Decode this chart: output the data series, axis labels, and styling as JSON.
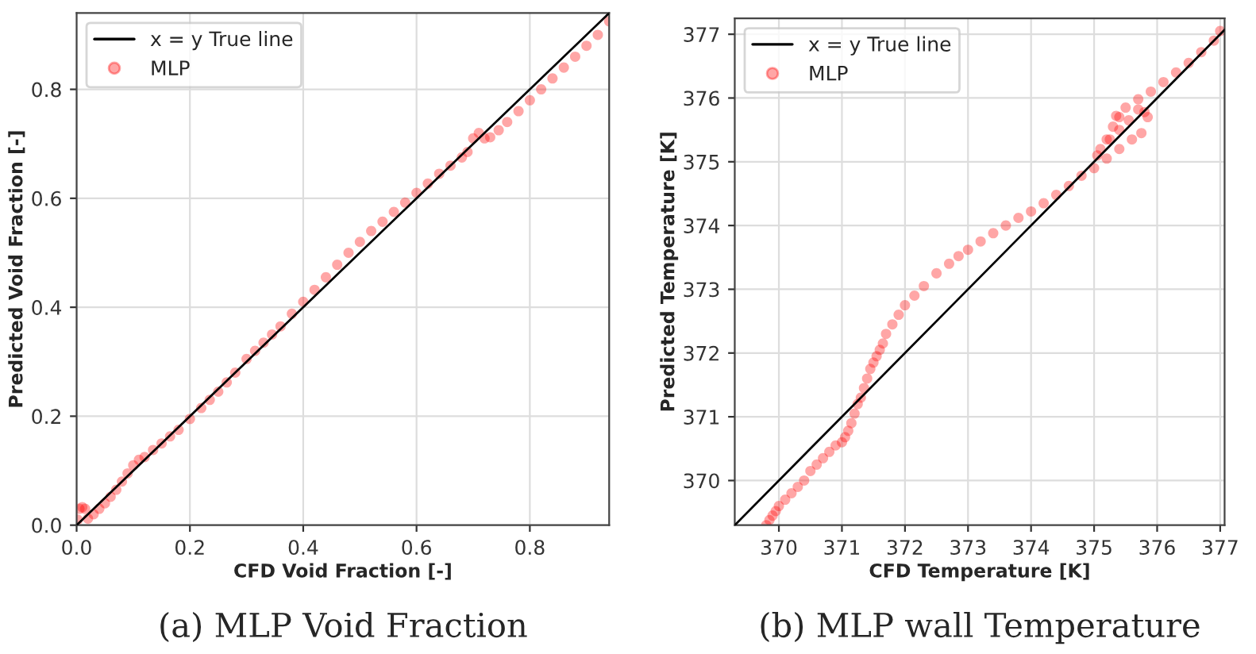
{
  "chart_data": [
    {
      "type": "scatter",
      "title": "(a) MLP Void Fraction",
      "xlabel": "CFD Void Fraction [-]",
      "ylabel": "Predicted Void Fraction [-]",
      "xlim": [
        0,
        0.94
      ],
      "ylim": [
        0,
        0.94
      ],
      "xticks": [
        {
          "value": 0,
          "label": "0.0"
        },
        0.2,
        0.4,
        0.6,
        0.8
      ],
      "yticks": [
        {
          "value": 0,
          "label": "0.0"
        },
        0.2,
        0.4,
        0.6,
        0.8
      ],
      "grid": true,
      "legend": "top left",
      "series": [
        {
          "name": "x = y True line",
          "type": "line",
          "color": "#000000",
          "x": [
            0,
            0.94
          ],
          "values": [
            0,
            0.94
          ]
        },
        {
          "name": "MLP",
          "marker": "circle",
          "color": "#ff0000",
          "x": [
            0.002,
            0.005,
            0.01,
            0.015,
            0.02,
            0.03,
            0.04,
            0.05,
            0.06,
            0.07,
            0.08,
            0.09,
            0.1,
            0.11,
            0.12,
            0.135,
            0.15,
            0.165,
            0.18,
            0.2,
            0.22,
            0.235,
            0.25,
            0.265,
            0.28,
            0.3,
            0.315,
            0.33,
            0.345,
            0.36,
            0.38,
            0.4,
            0.42,
            0.44,
            0.46,
            0.48,
            0.5,
            0.52,
            0.54,
            0.56,
            0.58,
            0.6,
            0.62,
            0.64,
            0.66,
            0.68,
            0.69,
            0.7,
            0.71,
            0.72,
            0.73,
            0.745,
            0.76,
            0.78,
            0.8,
            0.82,
            0.84,
            0.86,
            0.88,
            0.9,
            0.92,
            0.94
          ],
          "values": [
            0.01,
            0.03,
            0.033,
            0.03,
            0.012,
            0.02,
            0.03,
            0.04,
            0.052,
            0.065,
            0.08,
            0.095,
            0.11,
            0.12,
            0.125,
            0.138,
            0.15,
            0.163,
            0.175,
            0.195,
            0.215,
            0.23,
            0.245,
            0.262,
            0.28,
            0.305,
            0.32,
            0.335,
            0.35,
            0.365,
            0.388,
            0.41,
            0.432,
            0.455,
            0.478,
            0.5,
            0.52,
            0.54,
            0.557,
            0.575,
            0.592,
            0.61,
            0.627,
            0.645,
            0.66,
            0.675,
            0.685,
            0.71,
            0.72,
            0.71,
            0.712,
            0.725,
            0.74,
            0.76,
            0.78,
            0.8,
            0.82,
            0.84,
            0.86,
            0.88,
            0.9,
            0.925
          ]
        }
      ]
    },
    {
      "type": "scatter",
      "title": "(b) MLP wall Temperature",
      "xlabel": "CFD Temperature [K]",
      "ylabel": "Predicted Temperature [K]",
      "xlim": [
        369.3,
        377.07
      ],
      "ylim": [
        369.3,
        377.25
      ],
      "xticks": [
        370,
        371,
        372,
        373,
        374,
        375,
        376,
        377
      ],
      "yticks": [
        370,
        371,
        372,
        373,
        374,
        375,
        376,
        377
      ],
      "grid": true,
      "legend": "top left",
      "series": [
        {
          "name": "x = y True line",
          "type": "line",
          "color": "#000000",
          "x": [
            369.3,
            377.07
          ],
          "values": [
            369.3,
            377.07
          ]
        },
        {
          "name": "MLP",
          "marker": "circle",
          "color": "#ff0000",
          "x": [
            369.8,
            369.85,
            369.9,
            369.95,
            370.0,
            370.1,
            370.2,
            370.3,
            370.4,
            370.5,
            370.6,
            370.7,
            370.8,
            370.9,
            371.0,
            371.05,
            371.1,
            371.15,
            371.2,
            371.25,
            371.3,
            371.35,
            371.4,
            371.45,
            371.5,
            371.55,
            371.6,
            371.65,
            371.7,
            371.8,
            371.9,
            372.0,
            372.15,
            372.3,
            372.5,
            372.7,
            372.85,
            373.0,
            373.2,
            373.4,
            373.6,
            373.8,
            374.0,
            374.2,
            374.4,
            374.6,
            374.8,
            375.0,
            375.2,
            375.4,
            375.6,
            375.75,
            375.85,
            375.8,
            375.7,
            375.55,
            375.4,
            375.25,
            375.1,
            375.05,
            375.2,
            375.3,
            375.4,
            375.35,
            375.5,
            375.7,
            375.9,
            376.1,
            376.3,
            376.5,
            376.7,
            376.9,
            377.0
          ],
          "values": [
            369.3,
            369.38,
            369.45,
            369.52,
            369.6,
            369.7,
            369.8,
            369.9,
            370.0,
            370.15,
            370.25,
            370.35,
            370.45,
            370.55,
            370.6,
            370.68,
            370.78,
            370.9,
            371.05,
            371.2,
            371.3,
            371.45,
            371.6,
            371.75,
            371.85,
            371.95,
            372.05,
            372.15,
            372.3,
            372.45,
            372.6,
            372.75,
            372.9,
            373.05,
            373.25,
            373.4,
            373.52,
            373.62,
            373.75,
            373.88,
            374.0,
            374.12,
            374.22,
            374.35,
            374.48,
            374.62,
            374.78,
            374.9,
            375.05,
            375.2,
            375.35,
            375.45,
            375.7,
            375.78,
            375.82,
            375.65,
            375.5,
            375.35,
            375.2,
            375.1,
            375.35,
            375.55,
            375.7,
            375.72,
            375.85,
            375.98,
            376.1,
            376.25,
            376.4,
            376.55,
            376.72,
            376.9,
            377.05
          ]
        }
      ]
    }
  ]
}
